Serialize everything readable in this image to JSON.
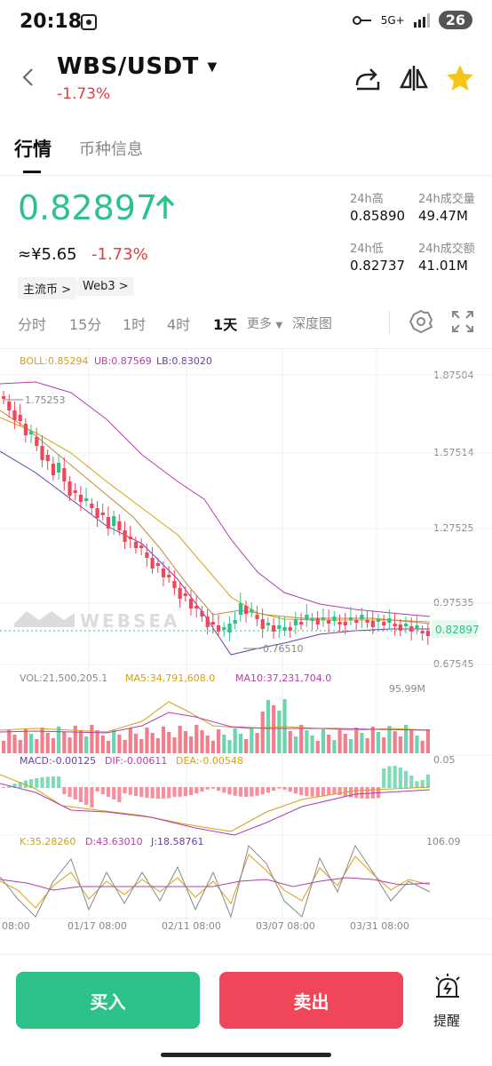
{
  "status_bar": {
    "time": "20:18",
    "network": "5G+",
    "battery": "26"
  },
  "header": {
    "pair": "WBS/USDT",
    "change": "-1.73%"
  },
  "tabs": {
    "market": "行情",
    "info": "币种信息"
  },
  "price": {
    "last": "0.82897",
    "cny": "≈¥5.65",
    "cny_change": "-1.73%",
    "tags": [
      "主流币 >",
      "Web3 >"
    ]
  },
  "stats": {
    "high_label": "24h高",
    "high": "0.85890",
    "vol_label": "24h成交量",
    "vol": "49.47M",
    "low_label": "24h低",
    "low": "0.82737",
    "amt_label": "24h成交额",
    "amt": "41.01M"
  },
  "intervals": {
    "items": [
      "分时",
      "15分",
      "1时",
      "4时",
      "1天"
    ],
    "more": "更多",
    "depth": "深度图"
  },
  "chart": {
    "boll": "BOLL:0.85294",
    "ub": "UB:0.87569",
    "lb": "LB:0.83020",
    "price_axis": [
      "1.87504",
      "1.57514",
      "1.27525",
      "0.97535",
      "0.67545"
    ],
    "max_label": "1.75253",
    "min_label": "0.76510",
    "last_tag": "0.82897",
    "watermark": "WEBSEA",
    "vol": "VOL:21,500,205.1",
    "ma5": "MA5:34,791,608.0",
    "ma10": "MA10:37,231,704.0",
    "vol_axis_top": "95.99M",
    "vol_axis_bottom": "0.05",
    "macd": "MACD:-0.00125",
    "dif": "DIF:-0.00611",
    "dea": "DEA:-0.00548",
    "k": "K:35.28260",
    "d": "D:43.63010",
    "j": "J:18.58761",
    "kdj_axis": "106.09",
    "dates": [
      "08:00",
      "01/17 08:00",
      "02/11 08:00",
      "03/07 08:00",
      "03/31 08:00"
    ]
  },
  "colors": {
    "up": "#2ec28b",
    "down": "#f0465a",
    "boll": "#d4a017",
    "ub": "#b43ea8",
    "lb": "#6a3ea8"
  },
  "buttons": {
    "buy": "买入",
    "sell": "卖出",
    "alert": "提醒"
  },
  "icons": [
    "back-arrow-icon",
    "share-icon",
    "compare-icon",
    "star-icon",
    "settings-icon",
    "fullscreen-icon",
    "alarm-icon"
  ]
}
